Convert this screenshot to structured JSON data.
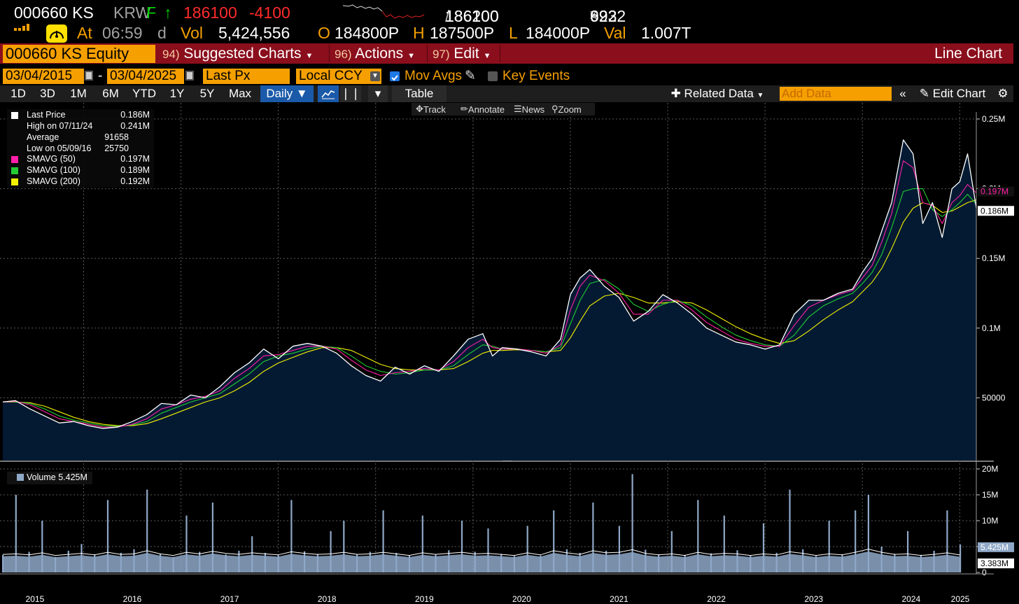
{
  "header": {
    "ticker": "000660 KS",
    "currency": "KRW",
    "currency_flag": "F",
    "direction_icon": "up-arrow-icon",
    "last_price": "186100",
    "change": "-4100",
    "bid": "186100",
    "ask": "186200",
    "bid_size": "9922",
    "ask_size": "623",
    "at_label": "At",
    "time": "06:59",
    "time_suffix": "d",
    "vol_label": "Vol",
    "volume": "5,424,556",
    "open_label": "O",
    "open": "184800P",
    "high_label": "H",
    "high": "187500P",
    "low_label": "L",
    "low": "184000P",
    "val_label": "Val",
    "value": "1.007T"
  },
  "command_bar": {
    "security": "000660 KS Equity",
    "menu1_num": "94)",
    "menu1_label": "Suggested Charts",
    "menu2_num": "96)",
    "menu2_label": "Actions",
    "menu3_num": "97)",
    "menu3_label": "Edit",
    "title": "Line Chart"
  },
  "settings": {
    "start_date": "03/04/2015",
    "date_sep": "-",
    "end_date": "03/04/2025",
    "field": "Last Px",
    "currency": "Local CCY",
    "mov_avgs_label": "Mov Avgs",
    "mov_avgs_checked": true,
    "key_events_label": "Key Events",
    "key_events_checked": false
  },
  "toolbar": {
    "ranges": [
      "1D",
      "3D",
      "1M",
      "6M",
      "YTD",
      "1Y",
      "5Y",
      "Max"
    ],
    "period": "Daily",
    "table_label": "Table",
    "related_data": "Related Data",
    "add_data_placeholder": "Add Data",
    "edit_chart": "Edit Chart"
  },
  "chart_tools": {
    "track": "Track",
    "annotate": "Annotate",
    "news": "News",
    "zoom": "Zoom"
  },
  "legend": {
    "rows": [
      {
        "label": "Last Price",
        "value": "0.186M",
        "color": "#ffffff"
      },
      {
        "label": "High on 07/11/24",
        "value": "0.241M",
        "color": null
      },
      {
        "label": "Average",
        "value": "91658",
        "color": null
      },
      {
        "label": "Low on 05/09/16",
        "value": "25750",
        "color": null
      },
      {
        "label": "SMAVG (50)",
        "value": "0.197M",
        "color": "#ff1fa8"
      },
      {
        "label": "SMAVG (100)",
        "value": "0.189M",
        "color": "#22cc33"
      },
      {
        "label": "SMAVG (200)",
        "value": "0.192M",
        "color": "#f2f200"
      }
    ],
    "volume_label": "Volume",
    "volume_value": "5.425M"
  },
  "chart_data": [
    {
      "type": "area",
      "title": "",
      "xlabel": "",
      "ylabel": "",
      "x_ticks": [
        "2015",
        "2016",
        "2017",
        "2018",
        "2019",
        "2020",
        "2021",
        "2022",
        "2023",
        "2024",
        "2025"
      ],
      "y_ticks": [
        "50000",
        "0.1M",
        "0.15M",
        "0.2M",
        "0.25M"
      ],
      "ylim": [
        0,
        250000
      ],
      "xlim": [
        2015.17,
        2025.17
      ],
      "grid": true,
      "legend_position": "top-left",
      "x": [
        2015.17,
        2015.3,
        2015.45,
        2015.6,
        2015.75,
        2015.9,
        2016.05,
        2016.2,
        2016.35,
        2016.5,
        2016.65,
        2016.8,
        2016.95,
        2017.1,
        2017.25,
        2017.4,
        2017.55,
        2017.7,
        2017.85,
        2018.0,
        2018.15,
        2018.3,
        2018.45,
        2018.6,
        2018.75,
        2018.9,
        2019.05,
        2019.2,
        2019.35,
        2019.5,
        2019.65,
        2019.8,
        2019.95,
        2020.1,
        2020.2,
        2020.3,
        2020.45,
        2020.6,
        2020.75,
        2020.9,
        2021.0,
        2021.1,
        2021.2,
        2021.35,
        2021.5,
        2021.65,
        2021.8,
        2021.95,
        2022.1,
        2022.25,
        2022.4,
        2022.55,
        2022.7,
        2022.85,
        2023.0,
        2023.15,
        2023.3,
        2023.45,
        2023.6,
        2023.75,
        2023.9,
        2024.0,
        2024.1,
        2024.2,
        2024.3,
        2024.42,
        2024.52,
        2024.62,
        2024.72,
        2024.82,
        2024.92,
        2025.0,
        2025.08,
        2025.17
      ],
      "series": [
        {
          "name": "Last Price",
          "values": [
            47000,
            48000,
            42000,
            37000,
            32000,
            33000,
            30000,
            28000,
            29000,
            33000,
            38000,
            46000,
            45000,
            52000,
            50000,
            58000,
            68000,
            75000,
            85000,
            78000,
            87000,
            89000,
            87000,
            82000,
            73000,
            66000,
            62000,
            72000,
            67000,
            73000,
            69000,
            80000,
            92000,
            96000,
            80000,
            86000,
            85000,
            83000,
            80000,
            92000,
            124000,
            136000,
            142000,
            130000,
            122000,
            105000,
            112000,
            124000,
            118000,
            110000,
            100000,
            95000,
            90000,
            88000,
            85000,
            88000,
            110000,
            120000,
            120000,
            125000,
            128000,
            140000,
            150000,
            170000,
            190000,
            235000,
            225000,
            175000,
            190000,
            165000,
            200000,
            205000,
            225000,
            186100
          ]
        },
        {
          "name": "SMAVG (50)",
          "values": [
            47000,
            47500,
            45000,
            40000,
            35000,
            33000,
            31000,
            29000,
            29000,
            31000,
            35000,
            42000,
            45000,
            49000,
            51000,
            55000,
            64000,
            71000,
            80000,
            81000,
            84000,
            87000,
            87000,
            85000,
            77000,
            70000,
            66000,
            68000,
            69000,
            71000,
            70000,
            76000,
            86000,
            92000,
            86000,
            85000,
            85000,
            84000,
            82000,
            88000,
            113000,
            130000,
            138000,
            134000,
            125000,
            110000,
            110000,
            120000,
            120000,
            113000,
            104000,
            98000,
            92000,
            89000,
            87000,
            87000,
            102000,
            115000,
            120000,
            124000,
            127000,
            136000,
            145000,
            162000,
            182000,
            220000,
            215000,
            190000,
            188000,
            175000,
            190000,
            195000,
            203000,
            197000
          ]
        },
        {
          "name": "SMAVG (100)",
          "values": [
            47000,
            47200,
            46000,
            42000,
            37000,
            34000,
            32000,
            30000,
            29500,
            30500,
            33000,
            39000,
            43000,
            47000,
            50000,
            53000,
            60000,
            67000,
            76000,
            80000,
            82000,
            85000,
            87000,
            86000,
            80000,
            73000,
            69000,
            67000,
            68000,
            70000,
            70000,
            73000,
            81000,
            88000,
            87000,
            85000,
            85000,
            84000,
            83000,
            86000,
            103000,
            120000,
            132000,
            135000,
            128000,
            117000,
            112000,
            117000,
            120000,
            116000,
            108000,
            101000,
            95000,
            91000,
            88000,
            87000,
            95000,
            108000,
            116000,
            121000,
            125000,
            132000,
            140000,
            153000,
            172000,
            198000,
            200000,
            200000,
            185000,
            180000,
            185000,
            190000,
            196000,
            189000
          ]
        },
        {
          "name": "SMAVG (200)",
          "values": [
            47000,
            47000,
            46500,
            44000,
            40000,
            36000,
            33000,
            31000,
            30000,
            30000,
            31500,
            35000,
            39000,
            43000,
            47000,
            50000,
            55000,
            61000,
            69000,
            75000,
            79000,
            83000,
            86000,
            86000,
            84000,
            79000,
            74000,
            71000,
            70000,
            70000,
            70000,
            71000,
            76000,
            82000,
            84000,
            84000,
            84500,
            84000,
            83000,
            84000,
            93000,
            105000,
            116000,
            123000,
            125000,
            122000,
            118000,
            118000,
            119000,
            118000,
            113000,
            107000,
            101000,
            96000,
            92000,
            89000,
            91000,
            98000,
            106000,
            113000,
            119000,
            126000,
            133000,
            143000,
            157000,
            176000,
            186000,
            190000,
            188000,
            183000,
            184000,
            187000,
            190000,
            192000
          ]
        }
      ],
      "value_labels": [
        "0.197M",
        "0.186M"
      ]
    },
    {
      "type": "bar",
      "title": "",
      "y_ticks": [
        "0",
        "5M",
        "10M",
        "15M",
        "20M"
      ],
      "ylim": [
        0,
        20000000
      ],
      "series": [
        {
          "name": "Volume",
          "values": [
            3400000,
            15000000,
            4000000,
            10000000,
            3000000,
            4200000,
            5500000,
            3500000,
            14000000,
            3800000,
            4500000,
            16000000,
            3600000,
            3000000,
            11000000,
            4000000,
            13500000,
            3500000,
            4200000,
            7000000,
            3800000,
            3400000,
            14000000,
            4100000,
            3600000,
            8000000,
            10000000,
            3500000,
            4000000,
            12000000,
            3800000,
            3300000,
            11000000,
            3500000,
            4300000,
            10000000,
            4000000,
            8500000,
            3600000,
            3200000,
            9000000,
            3300000,
            12000000,
            4500000,
            3800000,
            13500000,
            4200000,
            9000000,
            19000000,
            4400000,
            3500000,
            8000000,
            3400000,
            14000000,
            3700000,
            11000000,
            4300000,
            3300000,
            9500000,
            3800000,
            16000000,
            4500000,
            3200000,
            10000000,
            3500000,
            12000000,
            15000000,
            5000000,
            3600000,
            8000000,
            3400000,
            4200000,
            12000000,
            5425000
          ]
        },
        {
          "name": "Volume avg",
          "values": [
            3500000,
            3600000,
            3400000,
            3800000,
            3300000,
            3500000,
            3700000,
            3400000,
            3900000,
            3500000,
            3600000,
            4200000,
            3600000,
            3300000,
            3900000,
            3600000,
            4100000,
            3700000,
            3500000,
            3800000,
            3600000,
            3400000,
            4000000,
            3700000,
            3500000,
            3600000,
            3900000,
            3500000,
            3600000,
            3900000,
            3600000,
            3300000,
            3800000,
            3500000,
            3700000,
            3900000,
            3600000,
            3700000,
            3500000,
            3300000,
            3800000,
            3400000,
            4200000,
            3800000,
            3500000,
            4200000,
            3800000,
            3900000,
            4400000,
            3700000,
            3400000,
            3600000,
            3300000,
            3900000,
            3500000,
            3700000,
            3600000,
            3300000,
            3600000,
            3400000,
            4000000,
            3700000,
            3300000,
            3600000,
            3400000,
            3900000,
            4500000,
            3900000,
            3500000,
            3600000,
            3300000,
            3500000,
            3800000,
            3383000
          ]
        }
      ],
      "value_labels": [
        "5.425M",
        "3.383M"
      ]
    }
  ],
  "colors": {
    "accent": "#f5a000",
    "command_bar": "#8b0e1c",
    "area_fill": "#041a33",
    "price": "#ffffff",
    "sma50": "#ff1fa8",
    "sma100": "#22cc33",
    "sma200": "#f2f200",
    "volume": "#8fa8c8",
    "grid": "#5a5a5a"
  }
}
